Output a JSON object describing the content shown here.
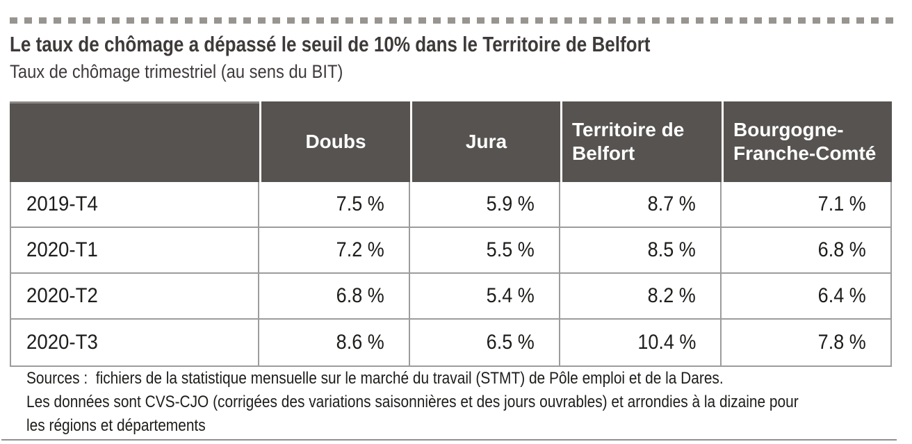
{
  "page": {
    "title": "Le taux de chômage a dépassé le seuil de 10% dans le Territoire de Belfort",
    "subtitle": "Taux de chômage trimestriel (au sens du BIT)"
  },
  "table": {
    "columns": [
      "",
      "Doubs",
      "Jura",
      "Territoire de Belfort",
      "Bourgogne-Franche-Comté"
    ],
    "rows": [
      {
        "label": "2019-T4",
        "values": [
          "7.5 %",
          "5.9 %",
          "8.7 %",
          "7.1 %"
        ]
      },
      {
        "label": "2020-T1",
        "values": [
          "7.2 %",
          "5.5 %",
          "8.5 %",
          "6.8 %"
        ]
      },
      {
        "label": "2020-T2",
        "values": [
          "6.8 %",
          "5.4 %",
          "8.2 %",
          "6.4 %"
        ]
      },
      {
        "label": "2020-T3",
        "values": [
          "8.6 %",
          "6.5 %",
          "10.4 %",
          "7.8 %"
        ]
      }
    ]
  },
  "sources": {
    "lines": [
      "Sources :  fichiers de la statistique mensuelle sur le marché du travail (STMT) de Pôle emploi et de la Dares.",
      "Les données sont CVS-CJO (corrigées des variations saisonnières et des jours ouvrables) et arrondies à la dizaine pour",
      "les régions et départements"
    ]
  },
  "colors": {
    "header-bg": "#575351",
    "header-top": "#8b8884",
    "grid": "#9c9c9c",
    "text": "#1d1d1b",
    "title": "#3e3a39",
    "dash": "#98948f",
    "rule": "#8f8f8f"
  },
  "chart_data": {
    "type": "table",
    "title": "Le taux de chômage a dépassé le seuil de 10% dans le Territoire de Belfort",
    "subtitle": "Taux de chômage trimestriel (au sens du BIT)",
    "unit": "%",
    "columns": [
      "Doubs",
      "Jura",
      "Territoire de Belfort",
      "Bourgogne-Franche-Comté"
    ],
    "rows": [
      {
        "period": "2019-T4",
        "values": [
          7.5,
          5.9,
          8.7,
          7.1
        ]
      },
      {
        "period": "2020-T1",
        "values": [
          7.2,
          5.5,
          8.5,
          6.8
        ]
      },
      {
        "period": "2020-T2",
        "values": [
          6.8,
          5.4,
          8.2,
          6.4
        ]
      },
      {
        "period": "2020-T3",
        "values": [
          8.6,
          6.5,
          10.4,
          7.8
        ]
      }
    ]
  }
}
